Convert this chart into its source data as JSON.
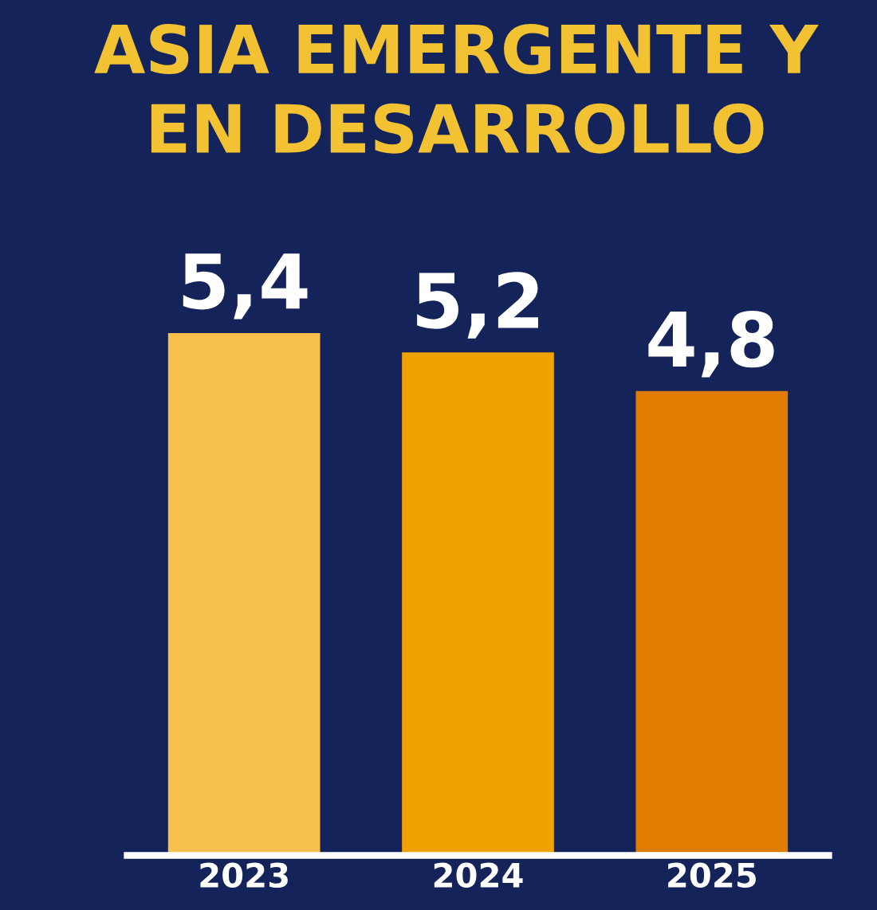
{
  "chart_data": {
    "type": "bar",
    "title": "ASIA EMERGENTE Y EN DESARROLLO",
    "categories": [
      "2023",
      "2024",
      "2025"
    ],
    "values": [
      5.4,
      5.2,
      4.8
    ],
    "value_labels": [
      "5,4",
      "5,2",
      "4,8"
    ],
    "colors": [
      "#f7bf4c",
      "#f0a300",
      "#e07d00"
    ]
  }
}
